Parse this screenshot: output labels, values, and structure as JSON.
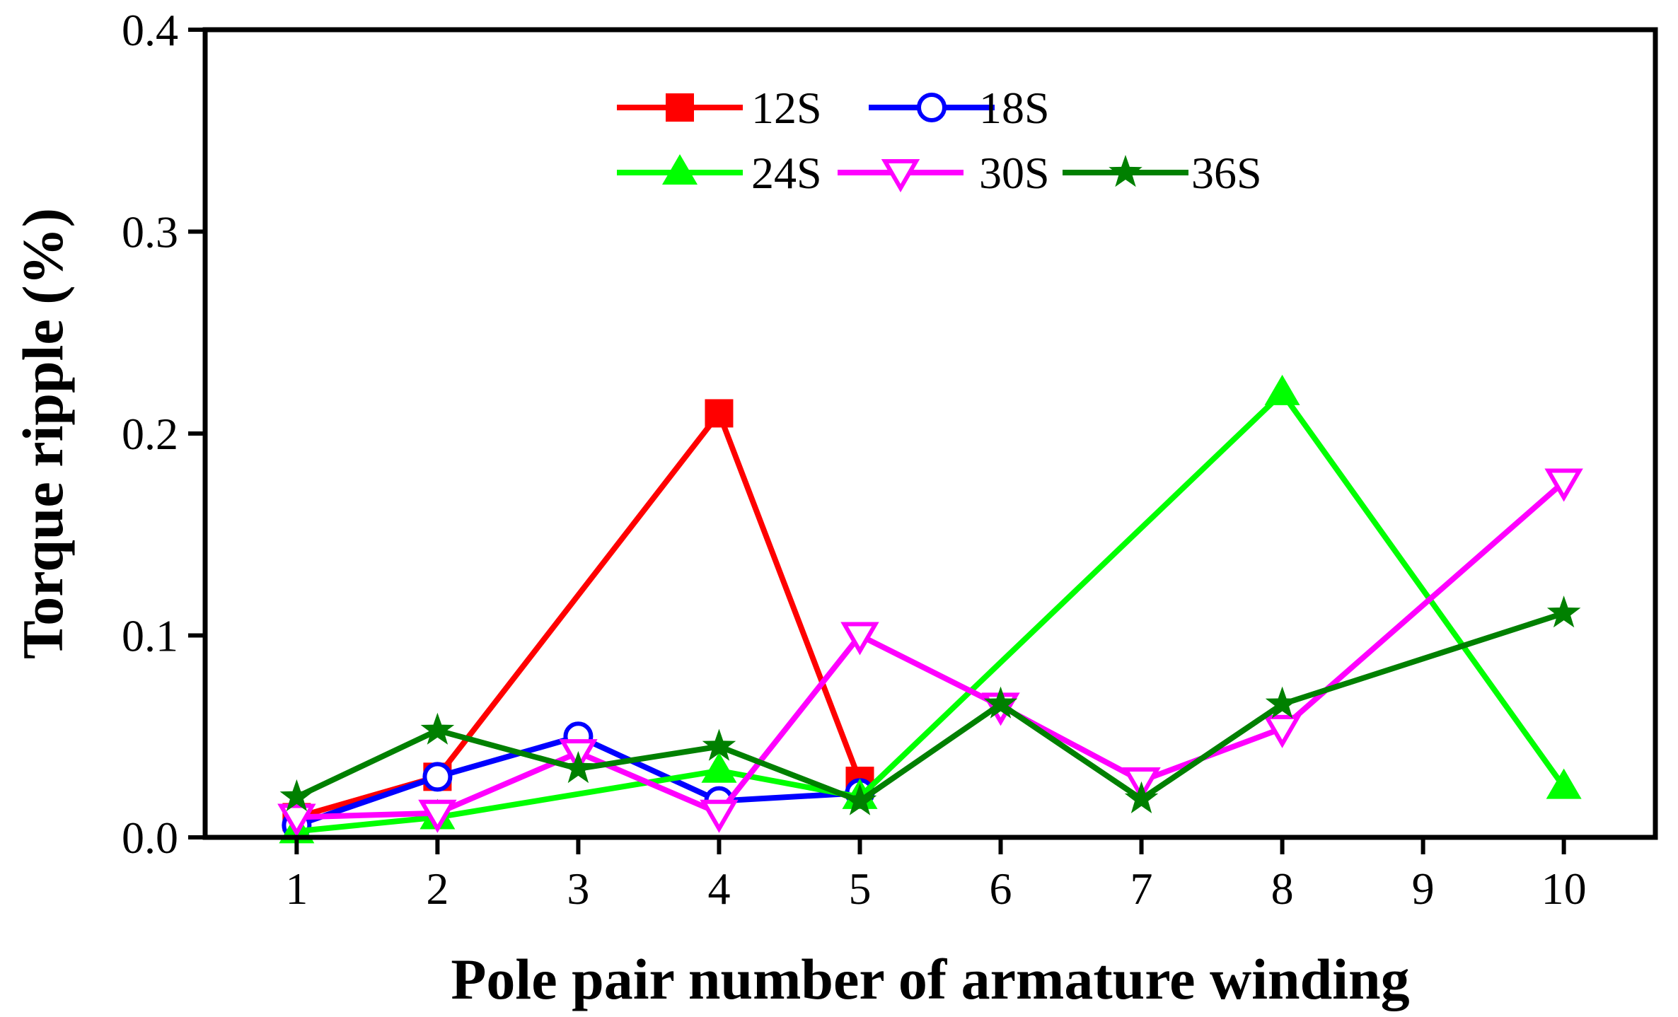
{
  "chart_data": {
    "type": "line",
    "title": "",
    "xlabel": "Pole pair number of armature winding",
    "ylabel": "Torque ripple (%)",
    "xlim": [
      0.35,
      10.65
    ],
    "ylim": [
      0,
      0.4
    ],
    "x_ticks": [
      1,
      2,
      3,
      4,
      5,
      6,
      7,
      8,
      9,
      10
    ],
    "x_tick_labels": [
      "1",
      "2",
      "3",
      "4",
      "5",
      "6",
      "7",
      "8",
      "9",
      "10"
    ],
    "y_ticks": [
      0,
      0.1,
      0.2,
      0.3,
      0.4
    ],
    "y_tick_labels": [
      "0.0",
      "0.1",
      "0.2",
      "0.3",
      "0.4"
    ],
    "grid": false,
    "legend_position": "top-center",
    "series": [
      {
        "name": "12S",
        "color": "#ff0000",
        "marker": "square-filled",
        "x": [
          1,
          2,
          4,
          5
        ],
        "y": [
          0.01,
          0.03,
          0.21,
          0.028
        ]
      },
      {
        "name": "18S",
        "color": "#0000ff",
        "marker": "circle-open",
        "x": [
          1,
          2,
          3,
          4,
          5
        ],
        "y": [
          0.006,
          0.03,
          0.05,
          0.018,
          0.022
        ]
      },
      {
        "name": "24S",
        "color": "#00ff00",
        "marker": "triangle-up-filled",
        "x": [
          1,
          2,
          4,
          5,
          8,
          10
        ],
        "y": [
          0.003,
          0.01,
          0.033,
          0.02,
          0.22,
          0.025
        ]
      },
      {
        "name": "30S",
        "color": "#ff00ff",
        "marker": "triangle-down-open",
        "x": [
          1,
          2,
          3,
          4,
          5,
          6,
          7,
          8,
          10
        ],
        "y": [
          0.01,
          0.012,
          0.042,
          0.012,
          0.1,
          0.065,
          0.028,
          0.054,
          0.176
        ]
      },
      {
        "name": "36S",
        "color": "#008000",
        "marker": "star-filled",
        "x": [
          1,
          2,
          3,
          4,
          5,
          6,
          7,
          8,
          10
        ],
        "y": [
          0.02,
          0.053,
          0.034,
          0.045,
          0.018,
          0.066,
          0.019,
          0.066,
          0.111
        ]
      }
    ]
  }
}
